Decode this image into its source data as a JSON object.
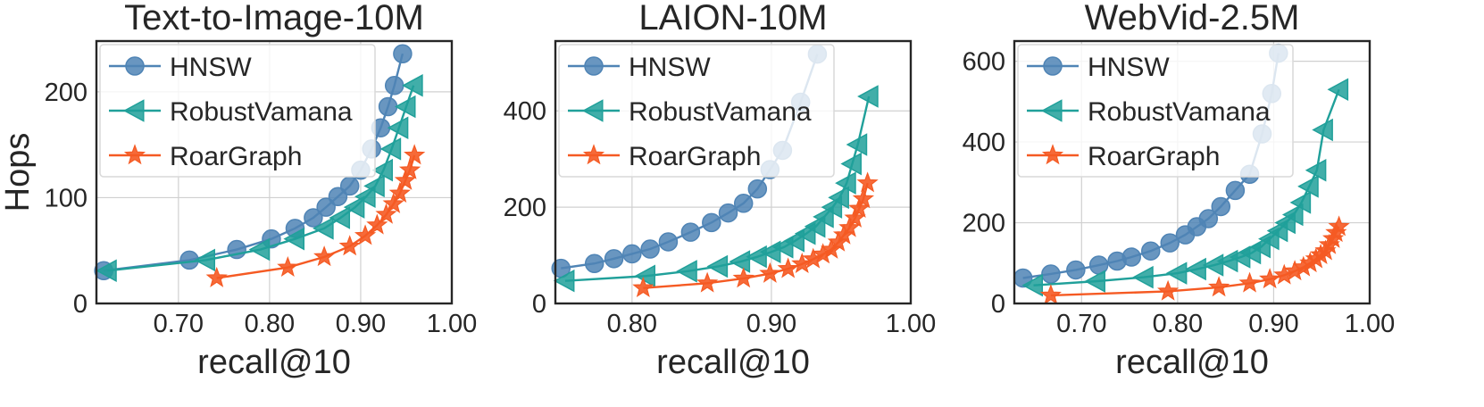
{
  "colors": {
    "hnsw": "#4f84b5",
    "robustvamana": "#20a09a",
    "roargraph": "#f55a23",
    "grid": "#d0d0d0",
    "frame": "#262626"
  },
  "chart_data": [
    {
      "type": "line",
      "title": "Text-to-Image-10M",
      "xlabel": "recall@10",
      "ylabel": "Hops",
      "xlim": [
        0.61,
        1.0
      ],
      "ylim": [
        0,
        248
      ],
      "xticks": [
        0.7,
        0.8,
        0.9,
        1.0
      ],
      "xtick_labels": [
        "0.70",
        "0.80",
        "0.90",
        "1.00"
      ],
      "yticks": [
        0,
        100,
        200
      ],
      "ytick_labels": [
        "0",
        "100",
        "200"
      ],
      "legend_position": "top-left",
      "series": [
        {
          "name": "HNSW",
          "marker": "circle",
          "x": [
            0.618,
            0.712,
            0.764,
            0.802,
            0.828,
            0.848,
            0.862,
            0.875,
            0.888,
            0.9,
            0.912,
            0.922,
            0.93,
            0.937,
            0.946
          ],
          "y": [
            31,
            41,
            51,
            61,
            71,
            81,
            91,
            101,
            111,
            126,
            146,
            166,
            186,
            206,
            236
          ]
        },
        {
          "name": "RobustVamana",
          "marker": "triangle-left",
          "x": [
            0.622,
            0.73,
            0.79,
            0.828,
            0.86,
            0.878,
            0.894,
            0.906,
            0.916,
            0.925,
            0.934,
            0.942,
            0.95,
            0.958
          ],
          "y": [
            31,
            41,
            51,
            61,
            71,
            81,
            91,
            101,
            111,
            126,
            146,
            166,
            186,
            206
          ]
        },
        {
          "name": "RoarGraph",
          "marker": "star",
          "x": [
            0.742,
            0.82,
            0.86,
            0.888,
            0.905,
            0.918,
            0.928,
            0.936,
            0.943,
            0.949,
            0.954,
            0.959
          ],
          "y": [
            24,
            34,
            44,
            54,
            64,
            74,
            84,
            94,
            104,
            116,
            126,
            140
          ]
        }
      ]
    },
    {
      "type": "line",
      "title": "LAION-10M",
      "xlabel": "recall@10",
      "ylabel": "",
      "xlim": [
        0.745,
        1.0
      ],
      "ylim": [
        0,
        545
      ],
      "xticks": [
        0.8,
        0.9,
        1.0
      ],
      "xtick_labels": [
        "0.80",
        "0.90",
        "1.00"
      ],
      "yticks": [
        0,
        200,
        400
      ],
      "ytick_labels": [
        "0",
        "200",
        "400"
      ],
      "legend_position": "top-left",
      "series": [
        {
          "name": "HNSW",
          "marker": "circle",
          "x": [
            0.749,
            0.773,
            0.787,
            0.8,
            0.813,
            0.826,
            0.842,
            0.857,
            0.869,
            0.88,
            0.89,
            0.899,
            0.908,
            0.921,
            0.933
          ],
          "y": [
            73,
            83,
            93,
            103,
            113,
            128,
            148,
            168,
            188,
            208,
            238,
            278,
            318,
            418,
            518
          ]
        },
        {
          "name": "RobustVamana",
          "marker": "triangle-left",
          "x": [
            0.752,
            0.81,
            0.84,
            0.862,
            0.878,
            0.89,
            0.9,
            0.909,
            0.917,
            0.925,
            0.932,
            0.938,
            0.944,
            0.949,
            0.954,
            0.958,
            0.962,
            0.97
          ],
          "y": [
            47,
            57,
            67,
            77,
            87,
            97,
            107,
            117,
            130,
            145,
            160,
            180,
            200,
            220,
            250,
            290,
            330,
            430
          ]
        },
        {
          "name": "RoarGraph",
          "marker": "star",
          "x": [
            0.808,
            0.854,
            0.88,
            0.899,
            0.912,
            0.922,
            0.93,
            0.937,
            0.943,
            0.948,
            0.952,
            0.956,
            0.96,
            0.963,
            0.966,
            0.969
          ],
          "y": [
            32,
            42,
            52,
            62,
            72,
            82,
            92,
            102,
            112,
            127,
            142,
            157,
            177,
            197,
            217,
            250
          ]
        }
      ]
    },
    {
      "type": "line",
      "title": "WebVid-2.5M",
      "xlabel": "recall@10",
      "ylabel": "",
      "xlim": [
        0.63,
        1.0
      ],
      "ylim": [
        0,
        650
      ],
      "xticks": [
        0.7,
        0.8,
        0.9,
        1.0
      ],
      "xtick_labels": [
        "0.70",
        "0.80",
        "0.90",
        "1.00"
      ],
      "yticks": [
        0,
        200,
        400,
        600
      ],
      "ytick_labels": [
        "0",
        "200",
        "400",
        "600"
      ],
      "legend_position": "top-left",
      "series": [
        {
          "name": "HNSW",
          "marker": "circle",
          "x": [
            0.639,
            0.668,
            0.694,
            0.718,
            0.737,
            0.752,
            0.772,
            0.792,
            0.808,
            0.82,
            0.832,
            0.845,
            0.86,
            0.875,
            0.888,
            0.898,
            0.905
          ],
          "y": [
            63,
            73,
            83,
            95,
            105,
            115,
            130,
            150,
            170,
            190,
            210,
            240,
            280,
            320,
            420,
            520,
            620
          ]
        },
        {
          "name": "RobustVamana",
          "marker": "triangle-left",
          "x": [
            0.65,
            0.715,
            0.765,
            0.8,
            0.82,
            0.838,
            0.853,
            0.866,
            0.877,
            0.887,
            0.896,
            0.905,
            0.913,
            0.921,
            0.929,
            0.937,
            0.945,
            0.952,
            0.968
          ],
          "y": [
            45,
            55,
            65,
            75,
            85,
            95,
            105,
            115,
            125,
            140,
            160,
            180,
            200,
            220,
            250,
            290,
            330,
            430,
            530
          ]
        },
        {
          "name": "RoarGraph",
          "marker": "star",
          "x": [
            0.668,
            0.79,
            0.843,
            0.875,
            0.896,
            0.911,
            0.922,
            0.931,
            0.938,
            0.944,
            0.949,
            0.954,
            0.958,
            0.962,
            0.965,
            0.968
          ],
          "y": [
            20,
            30,
            40,
            50,
            60,
            70,
            80,
            90,
            100,
            110,
            120,
            130,
            145,
            160,
            175,
            190
          ]
        }
      ]
    }
  ]
}
